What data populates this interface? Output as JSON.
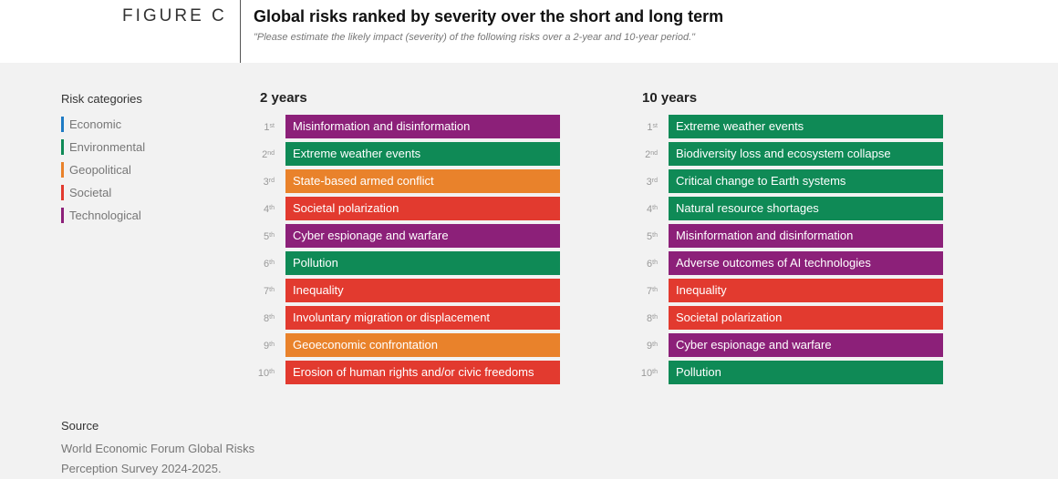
{
  "header": {
    "figure_label": "FIGURE C",
    "title": "Global risks ranked by severity over the short and long term",
    "subtitle": "\"Please estimate the likely impact (severity) of the following risks over a 2-year and 10-year period.\""
  },
  "colors": {
    "Economic": "#1e7bc4",
    "Environmental": "#0f8a56",
    "Geopolitical": "#e9822b",
    "Societal": "#e23a2f",
    "Technological": "#8c2079"
  },
  "legend": {
    "title": "Risk categories",
    "items": [
      "Economic",
      "Environmental",
      "Geopolitical",
      "Societal",
      "Technological"
    ]
  },
  "columns": [
    {
      "title": "2 years",
      "rows": [
        {
          "num": "1",
          "suffix": "st",
          "label": "Misinformation and disinformation",
          "category": "Technological"
        },
        {
          "num": "2",
          "suffix": "nd",
          "label": "Extreme weather events",
          "category": "Environmental"
        },
        {
          "num": "3",
          "suffix": "rd",
          "label": "State-based armed conflict",
          "category": "Geopolitical"
        },
        {
          "num": "4",
          "suffix": "th",
          "label": "Societal polarization",
          "category": "Societal"
        },
        {
          "num": "5",
          "suffix": "th",
          "label": "Cyber espionage and warfare",
          "category": "Technological"
        },
        {
          "num": "6",
          "suffix": "th",
          "label": "Pollution",
          "category": "Environmental"
        },
        {
          "num": "7",
          "suffix": "th",
          "label": "Inequality",
          "category": "Societal"
        },
        {
          "num": "8",
          "suffix": "th",
          "label": "Involuntary migration or displacement",
          "category": "Societal"
        },
        {
          "num": "9",
          "suffix": "th",
          "label": "Geoeconomic confrontation",
          "category": "Geopolitical"
        },
        {
          "num": "10",
          "suffix": "th",
          "label": "Erosion of human rights and/or civic freedoms",
          "category": "Societal"
        }
      ]
    },
    {
      "title": "10 years",
      "rows": [
        {
          "num": "1",
          "suffix": "st",
          "label": "Extreme weather events",
          "category": "Environmental"
        },
        {
          "num": "2",
          "suffix": "nd",
          "label": "Biodiversity loss and ecosystem collapse",
          "category": "Environmental"
        },
        {
          "num": "3",
          "suffix": "rd",
          "label": "Critical change to Earth systems",
          "category": "Environmental"
        },
        {
          "num": "4",
          "suffix": "th",
          "label": "Natural resource shortages",
          "category": "Environmental"
        },
        {
          "num": "5",
          "suffix": "th",
          "label": "Misinformation and disinformation",
          "category": "Technological"
        },
        {
          "num": "6",
          "suffix": "th",
          "label": "Adverse outcomes of AI technologies",
          "category": "Technological"
        },
        {
          "num": "7",
          "suffix": "th",
          "label": "Inequality",
          "category": "Societal"
        },
        {
          "num": "8",
          "suffix": "th",
          "label": "Societal polarization",
          "category": "Societal"
        },
        {
          "num": "9",
          "suffix": "th",
          "label": "Cyber espionage and warfare",
          "category": "Technological"
        },
        {
          "num": "10",
          "suffix": "th",
          "label": "Pollution",
          "category": "Environmental"
        }
      ]
    }
  ],
  "source": {
    "title": "Source",
    "text": "World Economic Forum Global Risks Perception Survey 2024-2025."
  }
}
